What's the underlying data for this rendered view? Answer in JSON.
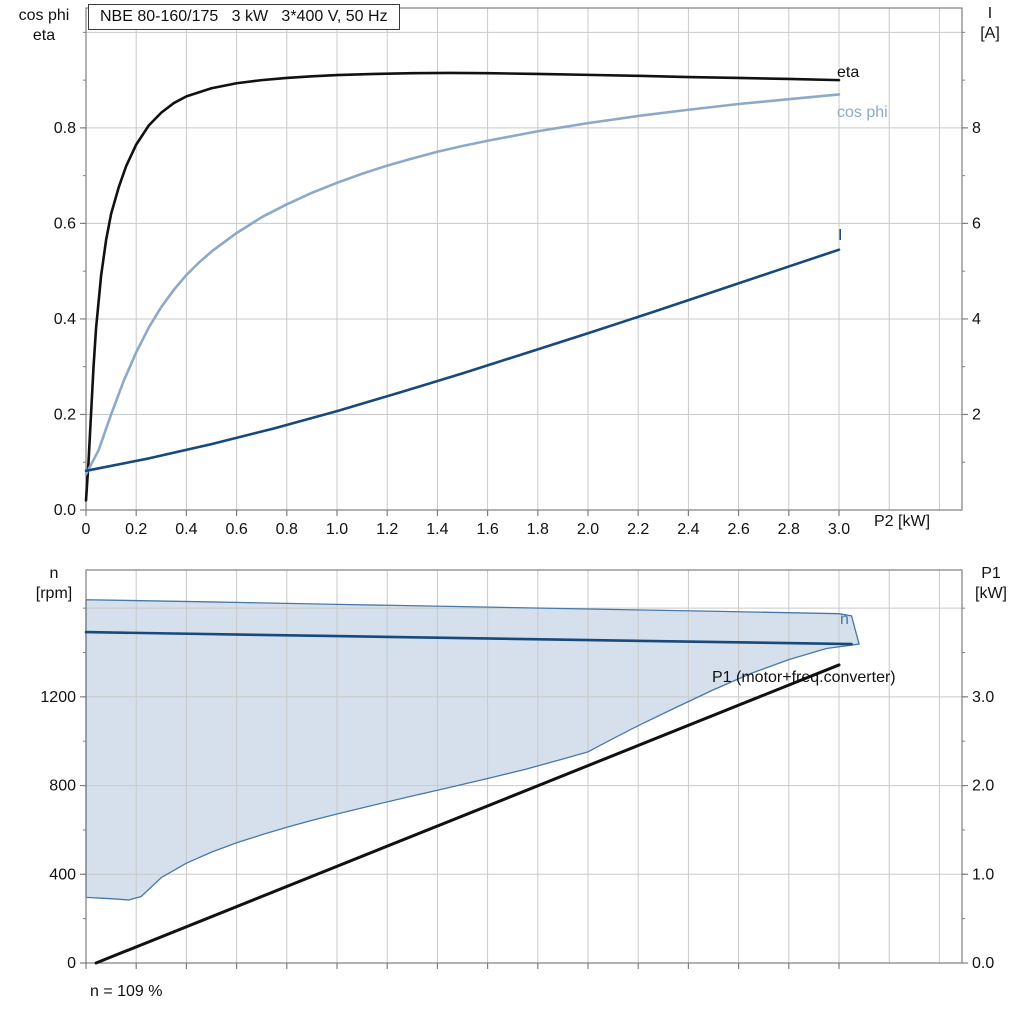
{
  "title": "NBE 80-160/175   3 kW   3*400 V, 50 Hz",
  "labels": {
    "top_left_axis": "cos phi\neta",
    "top_right_axis": "I\n[A]",
    "bottom_left_axis": "n\n[rpm]",
    "bottom_right_axis": "P1\n[kW]",
    "x_axis": "P2 [kW]",
    "eta_curve": "eta",
    "cos_phi_curve": "cos phi",
    "current_curve": "I",
    "speed_curve": "n",
    "p1_curve": "P1 (motor+freq.converter)",
    "footnote": "n = 109 %"
  },
  "colors": {
    "grid": "#c9c9c9",
    "frame": "#7f7f7f",
    "eta": "#111111",
    "cos_phi": "#8ca9c8",
    "current": "#17497c",
    "speed": "#17497c",
    "speed_label": "#4878a8",
    "band_fill": "#d5e0ec",
    "band_stroke": "#4878a8",
    "p1": "#111111"
  },
  "chart_data": [
    {
      "type": "line",
      "title": "NBE 80-160/175   3 kW   3*400 V, 50 Hz",
      "xlabel": "P2 [kW]",
      "x_range": [
        0,
        3.49
      ],
      "x_ticks": [
        0,
        0.2,
        0.4,
        0.6,
        0.8,
        1.0,
        1.2,
        1.4,
        1.6,
        1.8,
        2.0,
        2.2,
        2.4,
        2.6,
        2.8,
        3.0
      ],
      "x_tick_labels": [
        "0",
        "0.2",
        "0.4",
        "0.6",
        "0.8",
        "1.0",
        "1.2",
        "1.4",
        "1.6",
        "1.8",
        "2.0",
        "2.2",
        "2.4",
        "2.6",
        "2.8",
        "3.0"
      ],
      "y_left": {
        "label": "cos phi / eta",
        "range": [
          0,
          1.051
        ],
        "ticks": [
          0,
          0.2,
          0.4,
          0.6,
          0.8
        ],
        "tick_labels": [
          "0.0",
          "0.2",
          "0.4",
          "0.6",
          "0.8"
        ],
        "minor_step": 0.1
      },
      "y_right": {
        "label": "I [A]",
        "range": [
          0,
          10.51
        ],
        "ticks": [
          2,
          4,
          6,
          8
        ],
        "tick_labels": [
          "2",
          "4",
          "6",
          "8"
        ],
        "minor_step": 1
      },
      "grid": true,
      "series": [
        {
          "name": "eta",
          "axis": "left",
          "color": "#111111",
          "width": 2.6,
          "points": [
            [
              0,
              0.02
            ],
            [
              0.01,
              0.1
            ],
            [
              0.02,
              0.2
            ],
            [
              0.03,
              0.3
            ],
            [
              0.04,
              0.38
            ],
            [
              0.06,
              0.49
            ],
            [
              0.08,
              0.565
            ],
            [
              0.1,
              0.62
            ],
            [
              0.13,
              0.675
            ],
            [
              0.16,
              0.72
            ],
            [
              0.2,
              0.765
            ],
            [
              0.25,
              0.805
            ],
            [
              0.3,
              0.832
            ],
            [
              0.35,
              0.852
            ],
            [
              0.4,
              0.866
            ],
            [
              0.5,
              0.883
            ],
            [
              0.6,
              0.8935
            ],
            [
              0.7,
              0.9
            ],
            [
              0.8,
              0.9045
            ],
            [
              0.9,
              0.908
            ],
            [
              1.0,
              0.9105
            ],
            [
              1.15,
              0.913
            ],
            [
              1.3,
              0.9145
            ],
            [
              1.45,
              0.915
            ],
            [
              1.6,
              0.9145
            ],
            [
              1.8,
              0.913
            ],
            [
              2.0,
              0.911
            ],
            [
              2.2,
              0.909
            ],
            [
              2.4,
              0.9065
            ],
            [
              2.6,
              0.9045
            ],
            [
              2.8,
              0.9025
            ],
            [
              3.0,
              0.9
            ]
          ]
        },
        {
          "name": "cos phi",
          "axis": "left",
          "color": "#8ca9c8",
          "width": 2.6,
          "points": [
            [
              0,
              0.075
            ],
            [
              0.05,
              0.125
            ],
            [
              0.1,
              0.2
            ],
            [
              0.15,
              0.27
            ],
            [
              0.2,
              0.33
            ],
            [
              0.25,
              0.382
            ],
            [
              0.3,
              0.425
            ],
            [
              0.35,
              0.461
            ],
            [
              0.4,
              0.492
            ],
            [
              0.45,
              0.518
            ],
            [
              0.5,
              0.541
            ],
            [
              0.6,
              0.58
            ],
            [
              0.7,
              0.613
            ],
            [
              0.8,
              0.64
            ],
            [
              0.9,
              0.664
            ],
            [
              1.0,
              0.685
            ],
            [
              1.1,
              0.704
            ],
            [
              1.2,
              0.721
            ],
            [
              1.3,
              0.736
            ],
            [
              1.4,
              0.75
            ],
            [
              1.5,
              0.762
            ],
            [
              1.6,
              0.773
            ],
            [
              1.8,
              0.793
            ],
            [
              2.0,
              0.81
            ],
            [
              2.2,
              0.825
            ],
            [
              2.4,
              0.838
            ],
            [
              2.6,
              0.85
            ],
            [
              2.8,
              0.86
            ],
            [
              3.0,
              0.87
            ]
          ]
        },
        {
          "name": "I",
          "axis": "right",
          "color": "#17497c",
          "width": 2.6,
          "points": [
            [
              0,
              0.82
            ],
            [
              0.25,
              1.08
            ],
            [
              0.5,
              1.38
            ],
            [
              0.75,
              1.71
            ],
            [
              1.0,
              2.07
            ],
            [
              1.25,
              2.46
            ],
            [
              1.5,
              2.86
            ],
            [
              1.75,
              3.28
            ],
            [
              2.0,
              3.7
            ],
            [
              2.25,
              4.13
            ],
            [
              2.5,
              4.57
            ],
            [
              2.75,
              5.01
            ],
            [
              3.0,
              5.45
            ]
          ]
        }
      ]
    },
    {
      "type": "line+band",
      "title": "",
      "xlabel": "",
      "x_range": [
        0,
        3.49
      ],
      "x_ticks": [
        0,
        0.2,
        0.4,
        0.6,
        0.8,
        1.0,
        1.2,
        1.4,
        1.6,
        1.8,
        2.0,
        2.2,
        2.4,
        2.6,
        2.8,
        3.0
      ],
      "y_left": {
        "label": "n [rpm]",
        "range": [
          0,
          1772
        ],
        "ticks": [
          0,
          400,
          800,
          1200
        ],
        "tick_labels": [
          "0",
          "400",
          "800",
          "1200"
        ],
        "minor_step": 200
      },
      "y_right": {
        "label": "P1 [kW]",
        "range": [
          0,
          4.43
        ],
        "ticks": [
          0,
          1,
          2,
          3
        ],
        "tick_labels": [
          "0.0",
          "1.0",
          "2.0",
          "3.0"
        ],
        "minor_step": 0.5
      },
      "grid": true,
      "band": {
        "name": "speed-operating-envelope",
        "axis": "left",
        "fill": "#d5e0ec",
        "stroke": "#4878a8",
        "upper": [
          [
            0,
            1638
          ],
          [
            0.5,
            1628
          ],
          [
            1.0,
            1617
          ],
          [
            1.5,
            1607
          ],
          [
            2.0,
            1596
          ],
          [
            2.5,
            1586
          ],
          [
            3.0,
            1575
          ],
          [
            3.05,
            1565
          ]
        ],
        "lower": [
          [
            0,
            296
          ],
          [
            0.1,
            290
          ],
          [
            0.17,
            284
          ],
          [
            0.22,
            300
          ],
          [
            0.3,
            385
          ],
          [
            0.4,
            450
          ],
          [
            0.5,
            500
          ],
          [
            0.6,
            542
          ],
          [
            0.7,
            578
          ],
          [
            0.8,
            612
          ],
          [
            0.9,
            643
          ],
          [
            1.0,
            672
          ],
          [
            1.15,
            713
          ],
          [
            1.3,
            753
          ],
          [
            1.45,
            792
          ],
          [
            1.6,
            832
          ],
          [
            1.75,
            873
          ],
          [
            1.9,
            920
          ],
          [
            2.0,
            952
          ],
          [
            2.1,
            1012
          ],
          [
            2.2,
            1070
          ],
          [
            2.35,
            1152
          ],
          [
            2.5,
            1232
          ],
          [
            2.65,
            1306
          ],
          [
            2.8,
            1368
          ],
          [
            2.95,
            1418
          ],
          [
            3.08,
            1438
          ]
        ]
      },
      "series": [
        {
          "name": "n",
          "axis": "left",
          "color": "#17497c",
          "width": 2.6,
          "points": [
            [
              0,
              1492
            ],
            [
              1.0,
              1474
            ],
            [
              2.0,
              1456
            ],
            [
              3.05,
              1438
            ]
          ]
        },
        {
          "name": "P1 (motor+freq.converter)",
          "axis": "right",
          "color": "#111111",
          "width": 3,
          "points": [
            [
              0.04,
              0
            ],
            [
              3.0,
              3.36
            ]
          ]
        }
      ]
    }
  ]
}
